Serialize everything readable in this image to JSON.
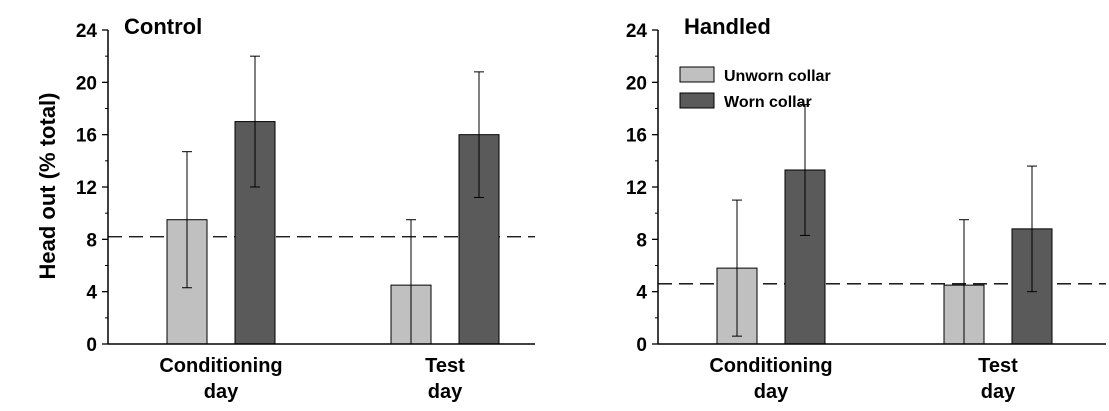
{
  "colors": {
    "unworn": "#c0c0c0",
    "worn": "#5a5a5a",
    "axis": "#000000",
    "reference_line": "#000000"
  },
  "chart_data": [
    {
      "type": "bar",
      "title": "Control",
      "ylabel": "Head out (% total)",
      "xlabel": "",
      "ylim": [
        0,
        24
      ],
      "yticks": [
        0,
        4,
        8,
        12,
        16,
        20,
        24
      ],
      "categories": [
        [
          "Conditioning",
          "day"
        ],
        [
          "Test",
          "day"
        ]
      ],
      "series": [
        {
          "name": "Unworn collar",
          "values": [
            9.5,
            4.5
          ],
          "error": [
            5.2,
            5.0
          ]
        },
        {
          "name": "Worn collar",
          "values": [
            17.0,
            16.0
          ],
          "error": [
            5.0,
            4.8
          ]
        }
      ],
      "reference_line": 8.2,
      "legend": false
    },
    {
      "type": "bar",
      "title": "Handled",
      "ylabel": "",
      "xlabel": "",
      "ylim": [
        0,
        24
      ],
      "yticks": [
        0,
        4,
        8,
        12,
        16,
        20,
        24
      ],
      "categories": [
        [
          "Conditioning",
          "day"
        ],
        [
          "Test",
          "day"
        ]
      ],
      "series": [
        {
          "name": "Unworn collar",
          "values": [
            5.8,
            4.5
          ],
          "error": [
            5.2,
            5.0
          ]
        },
        {
          "name": "Worn collar",
          "values": [
            13.3,
            8.8
          ],
          "error": [
            5.0,
            4.8
          ]
        }
      ],
      "reference_line": 4.6,
      "legend": "top-right"
    }
  ]
}
